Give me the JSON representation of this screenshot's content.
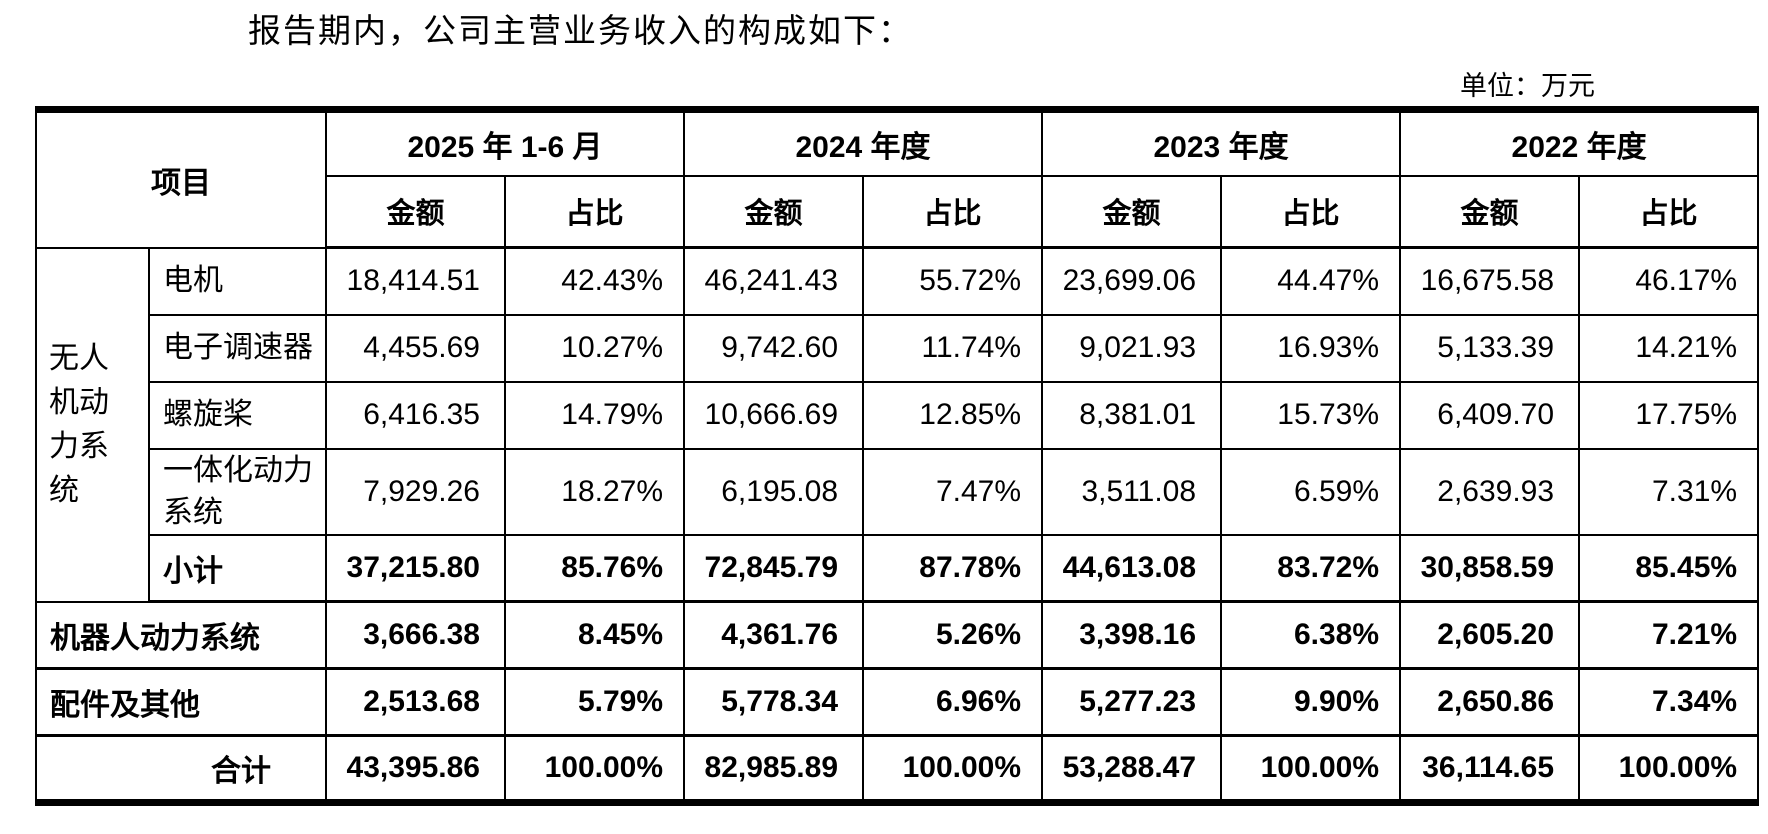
{
  "title": "报告期内，公司主营业务收入的构成如下：",
  "unit_label": "单位：万元",
  "table": {
    "header": {
      "item": "项目",
      "amount": "金额",
      "ratio": "占比",
      "periods": [
        "2025 年 1-6 月",
        "2024 年度",
        "2023 年度",
        "2022 年度"
      ]
    },
    "group": {
      "label": "无人机动力系统",
      "items": [
        {
          "label": "电机",
          "values": [
            "18,414.51",
            "42.43%",
            "46,241.43",
            "55.72%",
            "23,699.06",
            "44.47%",
            "16,675.58",
            "46.17%"
          ]
        },
        {
          "label": "电子调速器",
          "values": [
            "4,455.69",
            "10.27%",
            "9,742.60",
            "11.74%",
            "9,021.93",
            "16.93%",
            "5,133.39",
            "14.21%"
          ]
        },
        {
          "label": "螺旋桨",
          "values": [
            "6,416.35",
            "14.79%",
            "10,666.69",
            "12.85%",
            "8,381.01",
            "15.73%",
            "6,409.70",
            "17.75%"
          ]
        },
        {
          "label": "一体化动力系统",
          "values": [
            "7,929.26",
            "18.27%",
            "6,195.08",
            "7.47%",
            "3,511.08",
            "6.59%",
            "2,639.93",
            "7.31%"
          ]
        },
        {
          "label": "小计",
          "values": [
            "37,215.80",
            "85.76%",
            "72,845.79",
            "87.78%",
            "44,613.08",
            "83.72%",
            "30,858.59",
            "85.45%"
          ]
        }
      ]
    },
    "rows": [
      {
        "label": "机器人动力系统",
        "values": [
          "3,666.38",
          "8.45%",
          "4,361.76",
          "5.26%",
          "3,398.16",
          "6.38%",
          "2,605.20",
          "7.21%"
        ]
      },
      {
        "label": "配件及其他",
        "values": [
          "2,513.68",
          "5.79%",
          "5,778.34",
          "6.96%",
          "5,277.23",
          "9.90%",
          "2,650.86",
          "7.34%"
        ]
      }
    ],
    "total": {
      "label": "合计",
      "values": [
        "43,395.86",
        "100.00%",
        "82,985.89",
        "100.00%",
        "53,288.47",
        "100.00%",
        "36,114.65",
        "100.00%"
      ]
    }
  }
}
